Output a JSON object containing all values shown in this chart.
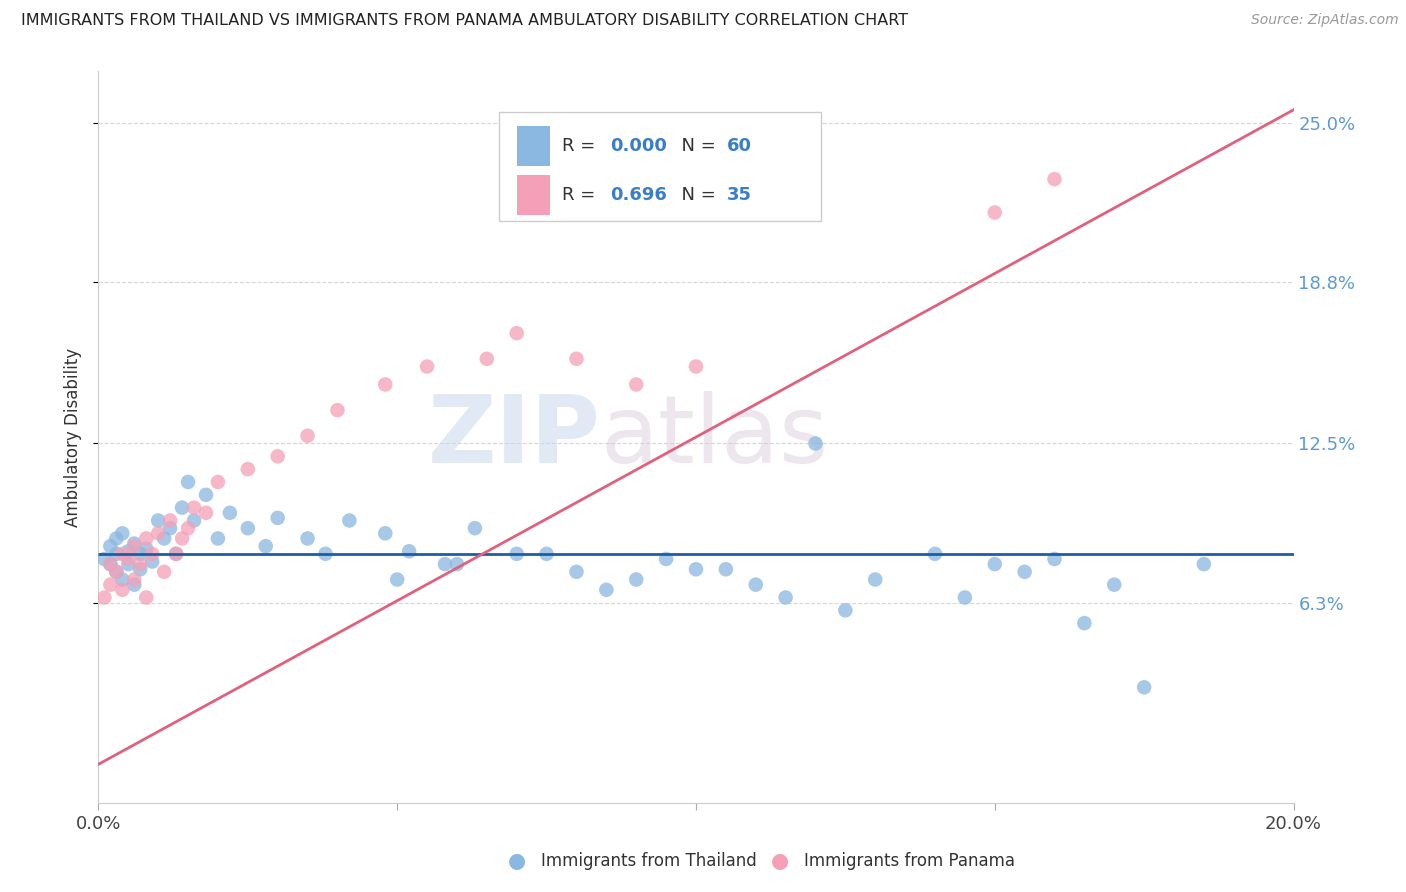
{
  "title": "IMMIGRANTS FROM THAILAND VS IMMIGRANTS FROM PANAMA AMBULATORY DISABILITY CORRELATION CHART",
  "source": "Source: ZipAtlas.com",
  "ylabel": "Ambulatory Disability",
  "legend_label_blue": "Immigrants from Thailand",
  "legend_label_pink": "Immigrants from Panama",
  "R_blue": "0.000",
  "N_blue": "60",
  "R_pink": "0.696",
  "N_pink": "35",
  "xlim": [
    0.0,
    0.2
  ],
  "ylim": [
    -0.015,
    0.27
  ],
  "yticks": [
    0.063,
    0.125,
    0.188,
    0.25
  ],
  "ytick_labels": [
    "6.3%",
    "12.5%",
    "18.8%",
    "25.0%"
  ],
  "xticks": [
    0.0,
    0.05,
    0.1,
    0.15,
    0.2
  ],
  "color_blue": "#8ab8e0",
  "color_pink": "#f4a0b8",
  "line_color_blue": "#1a5fa8",
  "line_color_pink": "#e06080",
  "watermark_zip": "ZIP",
  "watermark_atlas": "atlas",
  "blue_line_y": 0.082,
  "pink_line_x0": 0.0,
  "pink_line_y0": 0.0,
  "pink_line_x1": 0.2,
  "pink_line_y1": 0.255,
  "blue_points_x": [
    0.001,
    0.002,
    0.002,
    0.003,
    0.003,
    0.003,
    0.004,
    0.004,
    0.005,
    0.005,
    0.006,
    0.006,
    0.007,
    0.007,
    0.008,
    0.009,
    0.01,
    0.011,
    0.012,
    0.013,
    0.014,
    0.015,
    0.016,
    0.018,
    0.02,
    0.022,
    0.025,
    0.028,
    0.03,
    0.035,
    0.038,
    0.042,
    0.048,
    0.052,
    0.058,
    0.063,
    0.07,
    0.08,
    0.09,
    0.095,
    0.1,
    0.11,
    0.12,
    0.13,
    0.14,
    0.15,
    0.155,
    0.16,
    0.17,
    0.185,
    0.05,
    0.06,
    0.075,
    0.085,
    0.105,
    0.115,
    0.125,
    0.145,
    0.165,
    0.175
  ],
  "blue_points_y": [
    0.08,
    0.078,
    0.085,
    0.075,
    0.082,
    0.088,
    0.072,
    0.09,
    0.078,
    0.083,
    0.07,
    0.086,
    0.082,
    0.076,
    0.084,
    0.079,
    0.095,
    0.088,
    0.092,
    0.082,
    0.1,
    0.11,
    0.095,
    0.105,
    0.088,
    0.098,
    0.092,
    0.085,
    0.096,
    0.088,
    0.082,
    0.095,
    0.09,
    0.083,
    0.078,
    0.092,
    0.082,
    0.075,
    0.072,
    0.08,
    0.076,
    0.07,
    0.125,
    0.072,
    0.082,
    0.078,
    0.075,
    0.08,
    0.07,
    0.078,
    0.072,
    0.078,
    0.082,
    0.068,
    0.076,
    0.065,
    0.06,
    0.065,
    0.055,
    0.03
  ],
  "pink_points_x": [
    0.001,
    0.002,
    0.002,
    0.003,
    0.004,
    0.004,
    0.005,
    0.006,
    0.006,
    0.007,
    0.008,
    0.008,
    0.009,
    0.01,
    0.011,
    0.012,
    0.013,
    0.014,
    0.015,
    0.016,
    0.018,
    0.02,
    0.025,
    0.03,
    0.035,
    0.04,
    0.048,
    0.055,
    0.065,
    0.07,
    0.08,
    0.09,
    0.1,
    0.15,
    0.16
  ],
  "pink_points_y": [
    0.065,
    0.07,
    0.078,
    0.075,
    0.082,
    0.068,
    0.08,
    0.085,
    0.072,
    0.078,
    0.088,
    0.065,
    0.082,
    0.09,
    0.075,
    0.095,
    0.082,
    0.088,
    0.092,
    0.1,
    0.098,
    0.11,
    0.115,
    0.12,
    0.128,
    0.138,
    0.148,
    0.155,
    0.158,
    0.168,
    0.158,
    0.148,
    0.155,
    0.215,
    0.228
  ]
}
